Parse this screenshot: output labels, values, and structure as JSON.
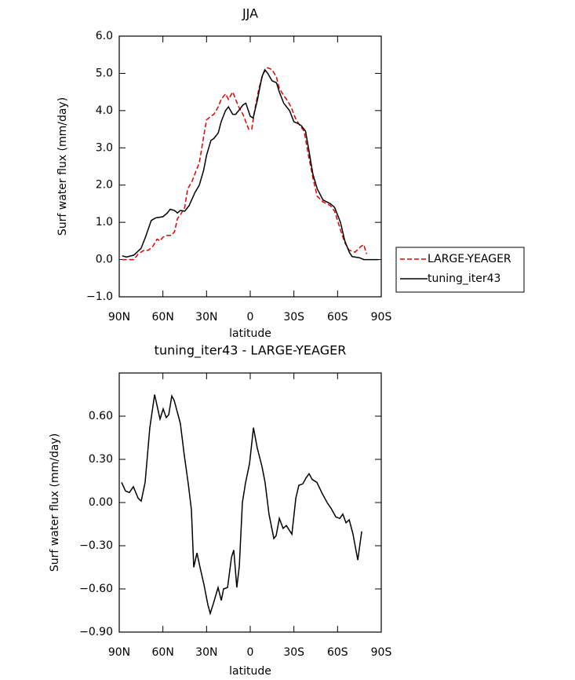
{
  "chart_data": [
    {
      "type": "line",
      "title": "JJA",
      "xlabel": "latitude",
      "ylabel": "Surf water flux (mm/day)",
      "xlim": [
        90,
        -90
      ],
      "xticks": [
        {
          "value": 90,
          "label": "90N"
        },
        {
          "value": 60,
          "label": "60N"
        },
        {
          "value": 30,
          "label": "30N"
        },
        0,
        {
          "value": -30,
          "label": "30S"
        },
        {
          "value": -60,
          "label": "60S"
        },
        {
          "value": -90,
          "label": "90S"
        }
      ],
      "ylim": [
        -1,
        6
      ],
      "yticks": [
        {
          "value": -1,
          "label": "−1.0"
        },
        {
          "value": 0,
          "label": "0.0"
        },
        {
          "value": 1,
          "label": "1.0"
        },
        {
          "value": 2,
          "label": "2.0"
        },
        {
          "value": 3,
          "label": "3.0"
        },
        {
          "value": 4,
          "label": "4.0"
        },
        {
          "value": 5,
          "label": "5.0"
        },
        {
          "value": 6,
          "label": "6.0"
        }
      ],
      "legend": "right",
      "series": [
        {
          "name": "LARGE-YEAGER",
          "color": "#e00000",
          "dashed": true,
          "x": [
            88,
            85,
            80,
            77,
            73,
            70,
            67,
            64,
            62,
            60,
            57,
            54,
            52,
            50,
            48,
            45,
            43,
            40,
            37,
            35,
            32,
            30,
            27,
            25,
            22,
            20,
            17,
            15,
            12,
            10,
            8,
            5,
            3,
            1,
            -1,
            -3,
            -6,
            -9,
            -12,
            -15,
            -18,
            -20,
            -23,
            -25,
            -28,
            -31,
            -34,
            -37,
            -40,
            -43,
            -46,
            -50,
            -55,
            -58,
            -62,
            -65,
            -68,
            -72,
            -76,
            -78,
            -80
          ],
          "values": [
            0.0,
            0.0,
            0.0,
            0.15,
            0.25,
            0.25,
            0.35,
            0.55,
            0.5,
            0.6,
            0.65,
            0.65,
            0.75,
            1.1,
            1.2,
            1.4,
            1.9,
            2.1,
            2.4,
            2.6,
            3.3,
            3.75,
            3.85,
            3.9,
            4.1,
            4.3,
            4.45,
            4.3,
            4.5,
            4.3,
            4.1,
            3.9,
            3.7,
            3.5,
            3.5,
            4.0,
            4.6,
            5.0,
            5.15,
            5.1,
            4.9,
            4.6,
            4.4,
            4.3,
            4.1,
            3.8,
            3.6,
            3.45,
            2.8,
            2.2,
            1.7,
            1.55,
            1.45,
            1.3,
            0.8,
            0.45,
            0.25,
            0.2,
            0.35,
            0.4,
            0.15
          ]
        },
        {
          "name": "tuning_iter43",
          "color": "#000000",
          "dashed": false,
          "x": [
            88,
            85,
            80,
            75,
            72,
            68,
            65,
            60,
            57,
            55,
            52,
            50,
            48,
            45,
            42,
            38,
            35,
            32,
            30,
            27,
            25,
            22,
            20,
            17,
            15,
            12,
            10,
            8,
            5,
            3,
            0,
            -2,
            -5,
            -8,
            -10,
            -12,
            -15,
            -18,
            -20,
            -23,
            -27,
            -30,
            -33,
            -35,
            -38,
            -40,
            -43,
            -46,
            -50,
            -55,
            -58,
            -62,
            -65,
            -68,
            -70,
            -75,
            -78,
            -82,
            -88
          ],
          "values": [
            0.1,
            0.07,
            0.12,
            0.3,
            0.6,
            1.05,
            1.12,
            1.15,
            1.25,
            1.35,
            1.32,
            1.25,
            1.32,
            1.3,
            1.45,
            1.8,
            2.0,
            2.4,
            2.8,
            3.2,
            3.25,
            3.4,
            3.7,
            4.0,
            4.1,
            3.9,
            3.9,
            4.0,
            4.15,
            4.2,
            3.85,
            3.8,
            4.3,
            4.9,
            5.1,
            5.0,
            4.8,
            4.75,
            4.5,
            4.2,
            4.0,
            3.7,
            3.65,
            3.6,
            3.45,
            3.0,
            2.3,
            1.9,
            1.6,
            1.5,
            1.4,
            1.0,
            0.5,
            0.2,
            0.08,
            0.05,
            0.0,
            0.0,
            0.0
          ]
        }
      ]
    },
    {
      "type": "line",
      "title": "tuning_iter43 - LARGE-YEAGER",
      "xlabel": "latitude",
      "ylabel": "Surf water flux (mm/day)",
      "xlim": [
        90,
        -90
      ],
      "xticks": [
        {
          "value": 90,
          "label": "90N"
        },
        {
          "value": 60,
          "label": "60N"
        },
        {
          "value": 30,
          "label": "30N"
        },
        0,
        {
          "value": -30,
          "label": "30S"
        },
        {
          "value": -60,
          "label": "60S"
        },
        {
          "value": -90,
          "label": "90S"
        }
      ],
      "ylim": [
        -0.9,
        0.9
      ],
      "yticks": [
        {
          "value": -0.9,
          "label": "−0.90"
        },
        {
          "value": -0.6,
          "label": "−0.60"
        },
        {
          "value": -0.3,
          "label": "−0.30"
        },
        {
          "value": 0,
          "label": "0.00"
        },
        {
          "value": 0.3,
          "label": "0.30"
        },
        {
          "value": 0.6,
          "label": "0.60"
        }
      ],
      "color": "#000000",
      "x": [
        88.4,
        85.7,
        83,
        80.3,
        77,
        74.9,
        72.2,
        69,
        65.7,
        62,
        59.8,
        57.7,
        56,
        53.9,
        52.3,
        48,
        45.3,
        42.6,
        40.4,
        38.8,
        36.6,
        34.5,
        31.8,
        29.1,
        27.5,
        25.3,
        22.1,
        19.9,
        18.3,
        15.6,
        12.9,
        11.3,
        9.2,
        7.5,
        5.4,
        3.2,
        0.5,
        -2.2,
        -4.8,
        -8.1,
        -10.2,
        -12.9,
        -16.2,
        -17.8,
        -20,
        -22.6,
        -24.8,
        -28.6,
        -31.3,
        -33.4,
        -36.1,
        -38.3,
        -40.4,
        -42.6,
        -45.8,
        -49.1,
        -52.8,
        -55.5,
        -58.8,
        -61.5,
        -63.6,
        -65.8,
        -68,
        -70.6,
        -73.9,
        -76.6
      ],
      "values": [
        0.14,
        0.08,
        0.07,
        0.11,
        0.03,
        0.01,
        0.14,
        0.52,
        0.75,
        0.58,
        0.65,
        0.59,
        0.61,
        0.74,
        0.71,
        0.55,
        0.33,
        0.13,
        -0.05,
        -0.45,
        -0.35,
        -0.45,
        -0.57,
        -0.71,
        -0.77,
        -0.7,
        -0.59,
        -0.68,
        -0.6,
        -0.59,
        -0.38,
        -0.33,
        -0.59,
        -0.44,
        0.0,
        0.14,
        0.27,
        0.52,
        0.38,
        0.25,
        0.14,
        -0.08,
        -0.25,
        -0.23,
        -0.11,
        -0.18,
        -0.16,
        -0.22,
        0.03,
        0.12,
        0.13,
        0.17,
        0.2,
        0.16,
        0.14,
        0.07,
        0.0,
        -0.04,
        -0.1,
        -0.11,
        -0.08,
        -0.14,
        -0.12,
        -0.22,
        -0.4,
        -0.2
      ]
    }
  ]
}
